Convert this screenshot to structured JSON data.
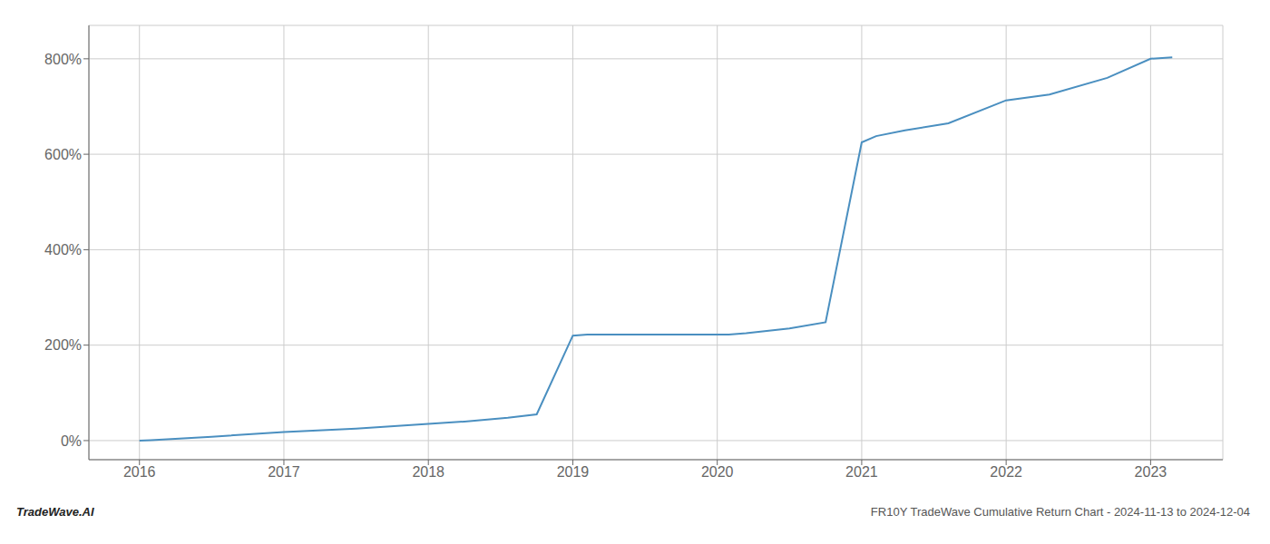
{
  "chart_data": {
    "type": "line",
    "x": [
      2016.0,
      2016.08,
      2016.5,
      2017.0,
      2017.5,
      2018.0,
      2018.25,
      2018.55,
      2018.75,
      2019.0,
      2019.1,
      2019.5,
      2020.0,
      2020.08,
      2020.2,
      2020.5,
      2020.75,
      2021.0,
      2021.1,
      2021.3,
      2021.6,
      2022.0,
      2022.3,
      2022.7,
      2023.0,
      2023.15
    ],
    "values": [
      0,
      1,
      8,
      18,
      25,
      35,
      40,
      48,
      55,
      220,
      222,
      222,
      222,
      222,
      225,
      235,
      248,
      625,
      638,
      650,
      665,
      713,
      725,
      760,
      800,
      803
    ],
    "color": "#4a8fc0",
    "xlim": [
      2015.65,
      2023.5
    ],
    "ylim": [
      -40,
      870
    ],
    "xticks": [
      2016,
      2017,
      2018,
      2019,
      2020,
      2021,
      2022,
      2023
    ],
    "yticks": [
      {
        "value": 0,
        "label": "0%"
      },
      {
        "value": 200,
        "label": "200%"
      },
      {
        "value": 400,
        "label": "400%"
      },
      {
        "value": 600,
        "label": "600%"
      },
      {
        "value": 800,
        "label": "800%"
      }
    ],
    "grid": true,
    "annotations": [
      "TradeWave.AI",
      "FR10Y TradeWave Cumulative Return Chart - 2024-11-13 to 2024-12-04"
    ]
  }
}
